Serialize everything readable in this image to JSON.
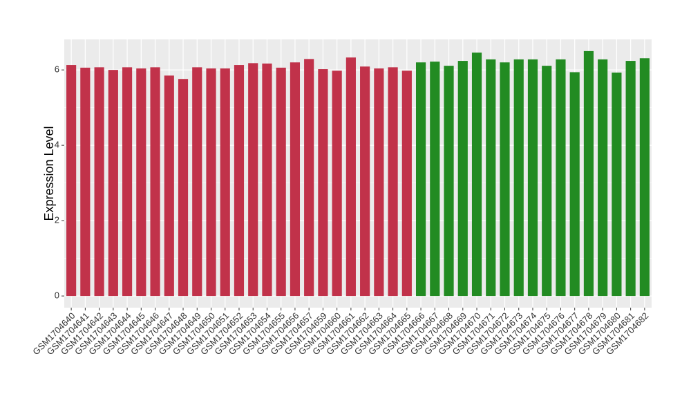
{
  "chart_data": {
    "type": "bar",
    "y_label": "Expression Level",
    "categories": [
      "GSM1704640",
      "GSM1704641",
      "GSM1704642",
      "GSM1704643",
      "GSM1704644",
      "GSM1704645",
      "GSM1704646",
      "GSM1704647",
      "GSM1704648",
      "GSM1704649",
      "GSM1704650",
      "GSM1704651",
      "GSM1704652",
      "GSM1704653",
      "GSM1704654",
      "GSM1704655",
      "GSM1704656",
      "GSM1704657",
      "GSM1704659",
      "GSM1704660",
      "GSM1704661",
      "GSM1704662",
      "GSM1704663",
      "GSM1704664",
      "GSM1704665",
      "GSM1704666",
      "GSM1704667",
      "GSM1704668",
      "GSM1704669",
      "GSM1704670",
      "GSM1704671",
      "GSM1704672",
      "GSM1704673",
      "GSM1704674",
      "GSM1704675",
      "GSM1704676",
      "GSM1704677",
      "GSM1704678",
      "GSM1704679",
      "GSM1704680",
      "GSM1704681",
      "GSM1704682"
    ],
    "values": [
      6.13,
      6.06,
      6.07,
      6.0,
      6.07,
      6.04,
      6.07,
      5.85,
      5.76,
      6.07,
      6.04,
      6.04,
      6.13,
      6.18,
      6.17,
      6.06,
      6.2,
      6.29,
      6.02,
      5.98,
      6.33,
      6.09,
      6.04,
      6.07,
      5.98,
      6.2,
      6.22,
      6.11,
      6.24,
      6.46,
      6.28,
      6.2,
      6.28,
      6.28,
      6.11,
      6.28,
      5.94,
      6.5,
      6.28,
      5.93,
      6.24,
      6.31
    ],
    "colors": [
      "#c1324a",
      "#c1324a",
      "#c1324a",
      "#c1324a",
      "#c1324a",
      "#c1324a",
      "#c1324a",
      "#c1324a",
      "#c1324a",
      "#c1324a",
      "#c1324a",
      "#c1324a",
      "#c1324a",
      "#c1324a",
      "#c1324a",
      "#c1324a",
      "#c1324a",
      "#c1324a",
      "#c1324a",
      "#c1324a",
      "#c1324a",
      "#c1324a",
      "#c1324a",
      "#c1324a",
      "#c1324a",
      "#228b22",
      "#228b22",
      "#228b22",
      "#228b22",
      "#228b22",
      "#228b22",
      "#228b22",
      "#228b22",
      "#228b22",
      "#228b22",
      "#228b22",
      "#228b22",
      "#228b22",
      "#228b22",
      "#228b22",
      "#228b22",
      "#228b22"
    ],
    "ylim": [
      -0.31,
      6.81
    ],
    "yticks": [
      0,
      2,
      4,
      6
    ],
    "y_minor_ticks": [
      1,
      3,
      5
    ],
    "grid": true
  }
}
